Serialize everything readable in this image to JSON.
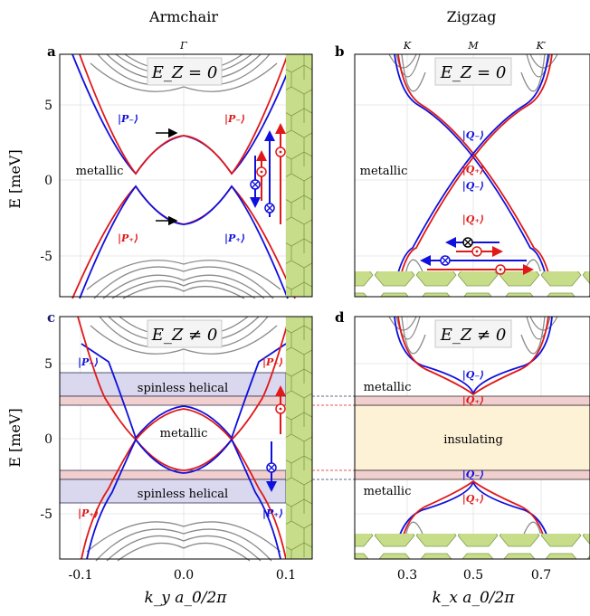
{
  "columns": {
    "left": "Armchair",
    "right": "Zigzag"
  },
  "colors": {
    "band": "#8a8a8a",
    "blue": "#1010dd",
    "red": "#e01818",
    "hex": "#c7dd8a",
    "hexEdge": "#7f9a4c",
    "hexLight": "#f3f0b5",
    "helical": "#d9d8ee",
    "helicalEdge": "#333355",
    "pinkBand": "#f2cfcf",
    "insulating": "#fdf1d6"
  },
  "chart_data": [
    {
      "panel": "a",
      "type": "line",
      "title": "E_Z = 0",
      "top_tick": "Γ",
      "xlabel": "",
      "ylabel": "E [meV]",
      "xlim": [
        -0.12,
        0.12
      ],
      "ylim": [
        -8,
        8
      ],
      "yticks": [
        "5",
        "0",
        "-5"
      ],
      "state_labels": [
        "|P₋⟩",
        "|P₋⟩",
        "|P₊⟩",
        "|P₊⟩"
      ],
      "annotations": [
        "metallic"
      ],
      "series": [
        {
          "x": [
            -0.1,
            -0.08,
            -0.06,
            -0.045,
            -0.03,
            -0.015,
            0.0,
            0.015,
            0.03,
            0.045,
            0.06,
            0.08,
            0.1
          ],
          "values": [
            8.0,
            5.0,
            2.0,
            0.2,
            1.6,
            2.6,
            3.0,
            2.6,
            1.6,
            0.2,
            2.0,
            5.0,
            8.0
          ]
        },
        {
          "x": [
            -0.1,
            -0.08,
            -0.06,
            -0.045,
            -0.03,
            -0.015,
            0.0,
            0.015,
            0.03,
            0.045,
            0.06,
            0.08,
            0.1
          ],
          "values": [
            -8.0,
            -5.0,
            -2.0,
            -0.2,
            -1.6,
            -2.6,
            -3.0,
            -2.6,
            -1.6,
            -0.2,
            -2.0,
            -5.0,
            -8.0
          ]
        }
      ]
    },
    {
      "panel": "b",
      "type": "line",
      "title": "E_Z = 0",
      "top_ticks": [
        "K",
        "M",
        "K′"
      ],
      "xlim": [
        0.2,
        0.8
      ],
      "ylim": [
        -8,
        8
      ],
      "state_labels": [
        "|Q₋⟩",
        "|Q₊⟩",
        "|Q₋⟩",
        "|Q₊⟩"
      ],
      "annotations": [
        "metallic"
      ],
      "series": [
        {
          "x": [
            0.333,
            0.4,
            0.45,
            0.5,
            0.55,
            0.6,
            0.667
          ],
          "values": [
            5.0,
            3.2,
            1.6,
            0.0,
            -1.6,
            -3.2,
            -5.0
          ]
        },
        {
          "x": [
            0.333,
            0.4,
            0.45,
            0.5,
            0.55,
            0.6,
            0.667
          ],
          "values": [
            -5.0,
            -3.2,
            -1.6,
            0.0,
            1.6,
            3.2,
            5.0
          ]
        }
      ]
    },
    {
      "panel": "c",
      "type": "line",
      "title": "E_Z ≠ 0",
      "xlabel": "k_y a_0/2π",
      "ylabel": "E [meV]",
      "xticks": [
        "-0.1",
        "0.0",
        "0.1"
      ],
      "yticks": [
        "5",
        "0",
        "-5"
      ],
      "xlim": [
        -0.12,
        0.12
      ],
      "ylim": [
        -8,
        8
      ],
      "state_labels": [
        "|P₋⟩",
        "|P₋⟩",
        "|P₊⟩",
        "|P₊⟩"
      ],
      "annotations": [
        "spinless helical",
        "metallic",
        "spinless helical"
      ],
      "series": [
        {
          "x": [
            -0.1,
            -0.07,
            -0.045,
            -0.02,
            0.0,
            0.02,
            0.045,
            0.07,
            0.1
          ],
          "values": [
            8.0,
            3.5,
            0.2,
            1.6,
            2.1,
            1.6,
            0.2,
            3.5,
            8.0
          ]
        },
        {
          "x": [
            -0.1,
            -0.07,
            -0.045,
            -0.02,
            0.0,
            0.02,
            0.045,
            0.07,
            0.1
          ],
          "values": [
            -8.0,
            -3.5,
            -0.2,
            -1.6,
            -2.1,
            -1.6,
            -0.2,
            -3.5,
            -8.0
          ]
        }
      ]
    },
    {
      "panel": "d",
      "type": "line",
      "title": "E_Z ≠ 0",
      "xlabel": "k_x a_0/2π",
      "xticks": [
        "0.3",
        "0.5",
        "0.7"
      ],
      "xlim": [
        0.2,
        0.8
      ],
      "ylim": [
        -8,
        8
      ],
      "state_labels": [
        "|Q₋⟩",
        "|Q₊⟩",
        "|Q₋⟩",
        "|Q₊⟩"
      ],
      "annotations": [
        "metallic",
        "insulating",
        "metallic"
      ],
      "series": [
        {
          "x": [
            0.35,
            0.42,
            0.5,
            0.58,
            0.65
          ],
          "values": [
            4.5,
            3.6,
            3.0,
            3.6,
            4.5
          ]
        },
        {
          "x": [
            0.35,
            0.42,
            0.5,
            0.58,
            0.65
          ],
          "values": [
            -4.5,
            -3.6,
            -3.0,
            -3.6,
            -4.5
          ]
        }
      ]
    }
  ],
  "panel_letters": [
    "a",
    "b",
    "c",
    "d"
  ]
}
